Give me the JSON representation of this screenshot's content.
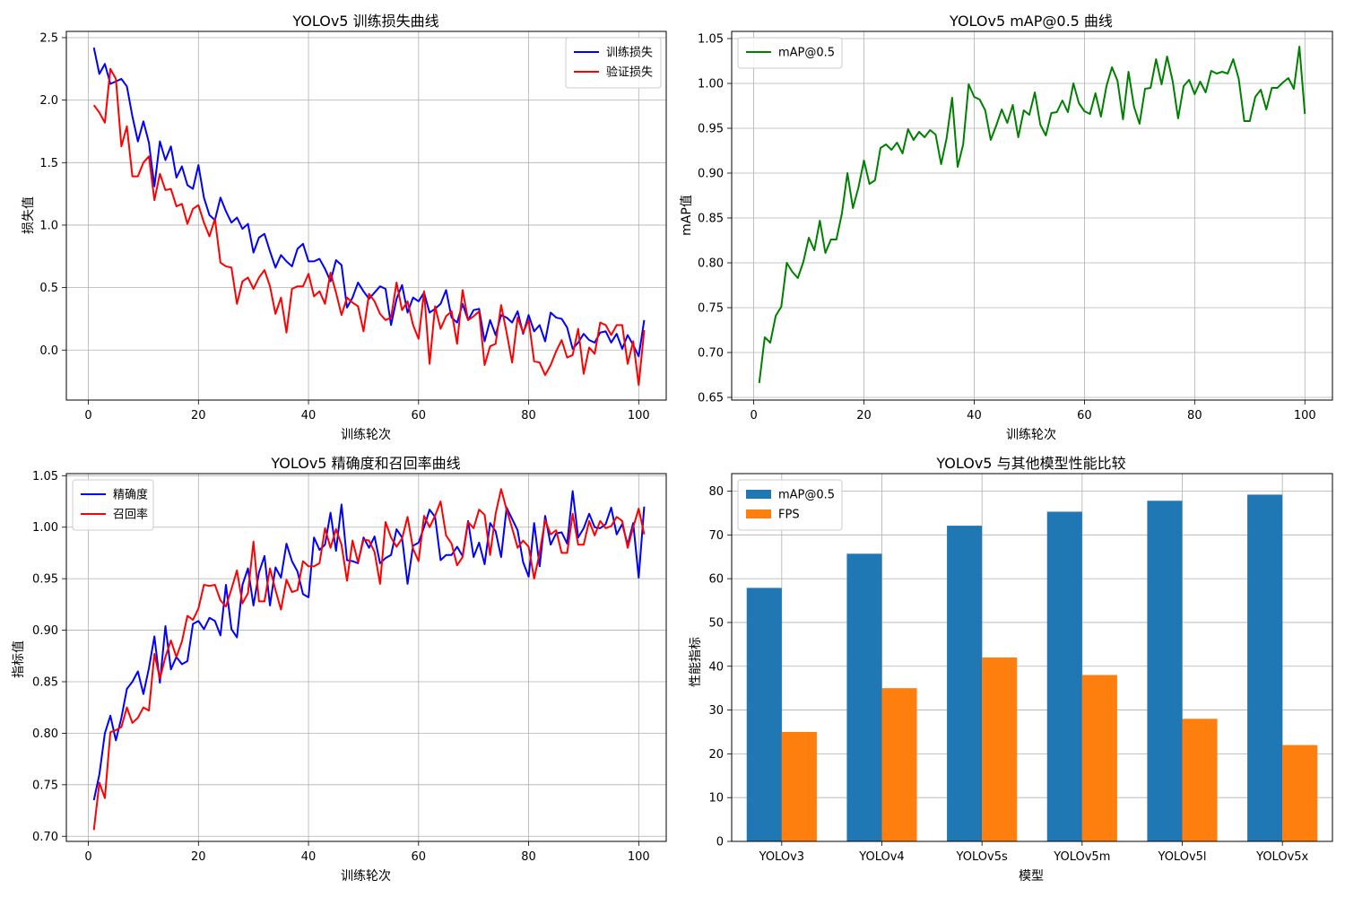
{
  "chart_data": [
    {
      "id": "loss",
      "type": "line",
      "title": "YOLOv5 训练损失曲线",
      "xlabel": "训练轮次",
      "ylabel": "损失值",
      "xlim": [
        -4,
        105
      ],
      "ylim": [
        -0.4,
        2.55
      ],
      "xticks": [
        0,
        20,
        40,
        60,
        80,
        100
      ],
      "yticks": [
        0.0,
        0.5,
        1.0,
        1.5,
        2.0,
        2.5
      ],
      "ytick_decimals": 1,
      "grid": true,
      "legend_position": "top-right",
      "series": [
        {
          "name": "训练损失",
          "color": "#0000ff",
          "values": [
            2.42,
            2.21,
            2.29,
            2.13,
            2.15,
            2.17,
            2.11,
            1.87,
            1.67,
            1.83,
            1.66,
            1.31,
            1.67,
            1.52,
            1.63,
            1.38,
            1.47,
            1.32,
            1.29,
            1.48,
            1.22,
            1.08,
            1.04,
            1.22,
            1.11,
            1.02,
            1.06,
            0.97,
            1.01,
            0.78,
            0.9,
            0.93,
            0.79,
            0.66,
            0.76,
            0.71,
            0.67,
            0.81,
            0.85,
            0.71,
            0.71,
            0.73,
            0.65,
            0.55,
            0.72,
            0.68,
            0.34,
            0.42,
            0.54,
            0.47,
            0.41,
            0.46,
            0.51,
            0.49,
            0.2,
            0.41,
            0.52,
            0.3,
            0.42,
            0.39,
            0.46,
            0.3,
            0.33,
            0.37,
            0.48,
            0.26,
            0.22,
            0.37,
            0.24,
            0.32,
            0.33,
            0.07,
            0.24,
            0.12,
            0.28,
            0.26,
            0.22,
            0.31,
            0.13,
            0.28,
            0.15,
            0.2,
            0.07,
            0.3,
            0.26,
            0.25,
            0.18,
            0.01,
            0.06,
            0.13,
            0.08,
            0.06,
            0.14,
            0.15,
            0.06,
            0.13,
            0.01,
            0.12,
            0.04,
            -0.05,
            0.24
          ]
        },
        {
          "name": "验证损失",
          "color": "#ff0000",
          "values": [
            1.96,
            1.9,
            1.82,
            2.25,
            2.17,
            1.63,
            1.79,
            1.39,
            1.39,
            1.5,
            1.55,
            1.2,
            1.41,
            1.28,
            1.29,
            1.15,
            1.17,
            1.01,
            1.13,
            1.16,
            1.02,
            0.91,
            1.05,
            0.7,
            0.67,
            0.66,
            0.37,
            0.55,
            0.58,
            0.49,
            0.58,
            0.64,
            0.51,
            0.29,
            0.42,
            0.14,
            0.49,
            0.51,
            0.51,
            0.61,
            0.43,
            0.47,
            0.37,
            0.62,
            0.46,
            0.28,
            0.42,
            0.38,
            0.35,
            0.15,
            0.45,
            0.39,
            0.29,
            0.24,
            0.26,
            0.54,
            0.32,
            0.39,
            0.2,
            0.09,
            0.47,
            -0.11,
            0.35,
            0.17,
            0.27,
            0.31,
            0.05,
            0.48,
            0.24,
            0.27,
            0.31,
            -0.12,
            0.03,
            0.05,
            0.36,
            0.14,
            -0.1,
            0.26,
            0.14,
            0.24,
            -0.09,
            -0.1,
            -0.2,
            -0.12,
            -0.01,
            0.08,
            -0.06,
            -0.04,
            0.17,
            -0.19,
            0.02,
            -0.03,
            0.22,
            0.2,
            0.12,
            0.2,
            0.2,
            -0.11,
            0.07,
            -0.28,
            0.16
          ]
        }
      ]
    },
    {
      "id": "map",
      "type": "line",
      "title": "YOLOv5 mAP@0.5 曲线",
      "xlabel": "训练轮次",
      "ylabel": "mAP值",
      "xlim": [
        -4,
        105
      ],
      "ylim": [
        0.647,
        1.058
      ],
      "xticks": [
        0,
        20,
        40,
        60,
        80,
        100
      ],
      "yticks": [
        0.65,
        0.7,
        0.75,
        0.8,
        0.85,
        0.9,
        0.95,
        1.0,
        1.05
      ],
      "ytick_decimals": 2,
      "grid": true,
      "legend_position": "top-left",
      "series": [
        {
          "name": "mAP@0.5",
          "color": "#008000",
          "values": [
            0.666,
            0.717,
            0.711,
            0.741,
            0.751,
            0.8,
            0.79,
            0.783,
            0.801,
            0.828,
            0.814,
            0.847,
            0.811,
            0.826,
            0.826,
            0.855,
            0.9,
            0.861,
            0.884,
            0.914,
            0.888,
            0.892,
            0.928,
            0.932,
            0.926,
            0.934,
            0.922,
            0.949,
            0.937,
            0.946,
            0.94,
            0.948,
            0.943,
            0.91,
            0.939,
            0.984,
            0.907,
            0.932,
            0.999,
            0.985,
            0.982,
            0.97,
            0.937,
            0.953,
            0.971,
            0.956,
            0.976,
            0.94,
            0.97,
            0.965,
            0.99,
            0.954,
            0.942,
            0.967,
            0.968,
            0.981,
            0.968,
            1.0,
            0.978,
            0.969,
            0.966,
            0.989,
            0.963,
            0.997,
            1.018,
            1.003,
            0.96,
            1.013,
            0.974,
            0.955,
            0.994,
            0.995,
            1.027,
            0.999,
            1.03,
            1.003,
            0.961,
            0.997,
            1.004,
            0.988,
            1.002,
            0.99,
            1.014,
            1.011,
            1.013,
            1.011,
            1.027,
            1.005,
            0.958,
            0.958,
            0.985,
            0.993,
            0.971,
            0.995,
            0.995,
            1.001,
            1.006,
            0.994,
            1.041,
            0.966
          ]
        }
      ]
    },
    {
      "id": "precision_recall",
      "type": "line",
      "title": "YOLOv5 精确度和召回率曲线",
      "xlabel": "训练轮次",
      "ylabel": "指标值",
      "xlim": [
        -4,
        105
      ],
      "ylim": [
        0.695,
        1.052
      ],
      "xticks": [
        0,
        20,
        40,
        60,
        80,
        100
      ],
      "yticks": [
        0.7,
        0.75,
        0.8,
        0.85,
        0.9,
        0.95,
        1.0,
        1.05
      ],
      "ytick_decimals": 2,
      "grid": true,
      "legend_position": "top-left",
      "series": [
        {
          "name": "精确度",
          "color": "#0000ff",
          "values": [
            0.735,
            0.76,
            0.8,
            0.817,
            0.793,
            0.815,
            0.843,
            0.85,
            0.86,
            0.838,
            0.863,
            0.894,
            0.849,
            0.904,
            0.862,
            0.874,
            0.867,
            0.87,
            0.906,
            0.909,
            0.901,
            0.912,
            0.909,
            0.895,
            0.944,
            0.901,
            0.893,
            0.944,
            0.96,
            0.924,
            0.956,
            0.972,
            0.924,
            0.961,
            0.951,
            0.984,
            0.967,
            0.957,
            0.935,
            0.932,
            0.99,
            0.978,
            0.983,
            1.014,
            0.977,
            1.022,
            0.968,
            0.967,
            0.965,
            0.99,
            0.98,
            0.991,
            0.965,
            0.97,
            0.973,
            0.998,
            0.99,
            0.945,
            0.982,
            0.985,
            1.0,
            1.017,
            1.01,
            0.968,
            0.973,
            0.973,
            0.981,
            0.972,
            1.006,
            0.971,
            0.985,
            0.964,
            1.004,
            0.996,
            0.971,
            1.019,
            1.008,
            0.997,
            0.966,
            0.952,
            1.004,
            0.962,
            1.011,
            0.983,
            0.994,
            0.995,
            0.984,
            1.035,
            0.99,
            0.999,
            1.013,
            1.0,
            0.999,
            1.003,
            1.019,
            0.993,
            1.003,
            0.983,
            1.004,
            0.951,
            1.02
          ]
        },
        {
          "name": "召回率",
          "color": "#ff0000",
          "values": [
            0.706,
            0.752,
            0.737,
            0.801,
            0.803,
            0.806,
            0.825,
            0.81,
            0.815,
            0.825,
            0.822,
            0.877,
            0.853,
            0.874,
            0.89,
            0.874,
            0.889,
            0.914,
            0.91,
            0.921,
            0.944,
            0.943,
            0.944,
            0.929,
            0.923,
            0.94,
            0.958,
            0.926,
            0.936,
            0.986,
            0.928,
            0.928,
            0.96,
            0.939,
            0.92,
            0.949,
            0.937,
            0.939,
            0.967,
            0.962,
            0.962,
            0.965,
            0.999,
            0.98,
            0.998,
            0.983,
            0.948,
            0.987,
            0.966,
            0.988,
            0.987,
            0.976,
            0.945,
            1.005,
            0.99,
            0.981,
            0.989,
            1.01,
            0.979,
            0.967,
            1.011,
            1.0,
            1.011,
            1.025,
            0.992,
            0.984,
            0.963,
            0.971,
            1.005,
            0.999,
            1.017,
            1.012,
            0.973,
            1.013,
            1.037,
            1.017,
            0.999,
            0.98,
            0.987,
            0.981,
            0.95,
            0.975,
            1.007,
            0.993,
            0.997,
            0.975,
            0.975,
            1.013,
            0.983,
            0.983,
            1.006,
            0.992,
            1.006,
            0.999,
            1.001,
            1.01,
            1.006,
            0.98,
            1.0,
            1.018,
            0.993
          ]
        }
      ]
    },
    {
      "id": "comparison",
      "type": "bar",
      "title": "YOLOv5 与其他模型性能比较",
      "xlabel": "模型",
      "ylabel": "性能指标",
      "ylim": [
        0,
        84
      ],
      "yticks": [
        0,
        10,
        20,
        30,
        40,
        50,
        60,
        70,
        80
      ],
      "ytick_decimals": 0,
      "grid": true,
      "legend_position": "top-left",
      "categories": [
        "YOLOv3",
        "YOLOv4",
        "YOLOv5s",
        "YOLOv5m",
        "YOLOv5l",
        "YOLOv5x"
      ],
      "series": [
        {
          "name": "mAP@0.5",
          "color": "#1f77b4",
          "values": [
            57.9,
            65.7,
            72.1,
            75.3,
            77.8,
            79.2
          ]
        },
        {
          "name": "FPS",
          "color": "#ff7f0e",
          "values": [
            25.0,
            35.0,
            42.0,
            38.0,
            28.0,
            22.0
          ]
        }
      ]
    }
  ]
}
